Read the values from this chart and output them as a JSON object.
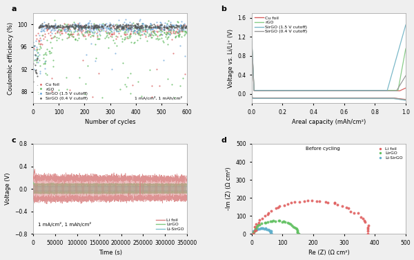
{
  "panel_a": {
    "title_label": "a",
    "xlabel": "Number of cycles",
    "ylabel": "Coulombic efficiency (%)",
    "xlim": [
      0,
      600
    ],
    "ylim": [
      86,
      102
    ],
    "yticks": [
      88,
      92,
      96,
      100
    ],
    "annotation": "1 mA/cm², 1 mAh/cm²",
    "legend": [
      "Cu foil",
      "rGO",
      "SirGO (1.5 V cutoff)",
      "SirGO (0.4 V cutoff)"
    ],
    "colors": [
      "#d95f5f",
      "#5cb85c",
      "#5b9bd5",
      "#555555"
    ]
  },
  "panel_b": {
    "title_label": "b",
    "xlabel": "Areal capacity (mAh/cm²)",
    "ylabel": "Voltage vs. Li/Li⁺ (V)",
    "xlim": [
      0.0,
      1.0
    ],
    "ylim": [
      -0.2,
      1.7
    ],
    "yticks": [
      0.0,
      0.4,
      0.8,
      1.2,
      1.6
    ],
    "xticks": [
      0.0,
      0.2,
      0.4,
      0.6,
      0.8,
      1.0
    ],
    "legend": [
      "Cu foil",
      "rGO",
      "SirGO (1.5 V cutoff)",
      "SirGO (0.4 V cutoff)"
    ],
    "colors": [
      "#d95f5f",
      "#88cc88",
      "#7ab8c8",
      "#999999"
    ]
  },
  "panel_c": {
    "title_label": "c",
    "xlabel": "Time (s)",
    "ylabel": "Voltage (V)",
    "xlim": [
      0,
      350000
    ],
    "ylim": [
      -0.8,
      0.8
    ],
    "yticks": [
      -0.8,
      -0.4,
      0.0,
      0.4,
      0.8
    ],
    "xticks": [
      0,
      50000,
      100000,
      150000,
      200000,
      250000,
      300000,
      350000
    ],
    "xtick_labels": [
      "0",
      "50000",
      "100000",
      "150000",
      "200000",
      "250000",
      "300000",
      "350000"
    ],
    "annotation": "1 mA/cm², 1 mAh/cm²",
    "legend": [
      "Li foil",
      "LirGO",
      "Li-SirGO"
    ],
    "colors": [
      "#d98080",
      "#80c880",
      "#80c0cc"
    ]
  },
  "panel_d": {
    "title_label": "d",
    "xlabel": "Re (Z) (Ω cm²)",
    "ylabel": "-Im (Z) (Ω cm²)",
    "xlim": [
      0,
      500
    ],
    "ylim": [
      0,
      500
    ],
    "xticks": [
      0,
      100,
      200,
      300,
      400,
      500
    ],
    "yticks": [
      0,
      100,
      200,
      300,
      400,
      500
    ],
    "annotation": "Before cycling",
    "legend": [
      "Li foil",
      "LirGO",
      "Li-SirGO"
    ],
    "colors": [
      "#e06060",
      "#60c060",
      "#60b0cc"
    ]
  },
  "bg_color": "#efefef",
  "panel_bg": "#ffffff"
}
